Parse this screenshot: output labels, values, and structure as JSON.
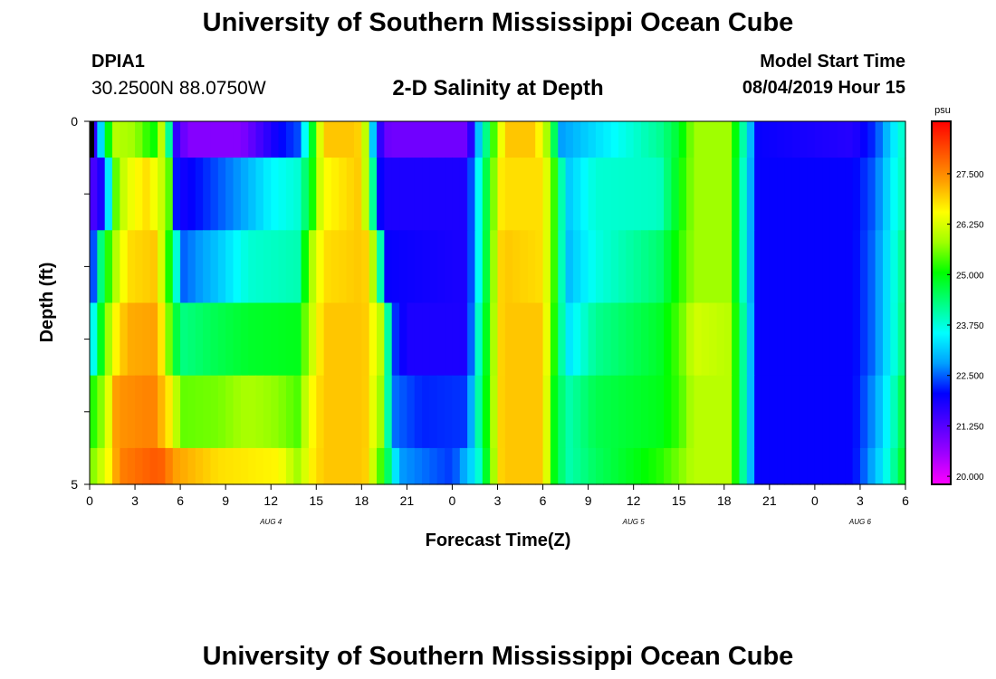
{
  "header": {
    "title": "University of Southern Mississippi Ocean Cube",
    "station_id": "DPIA1",
    "coords": "30.2500N 88.0750W",
    "model_label": "Model Start Time",
    "model_time": "08/04/2019 Hour 15"
  },
  "footer": {
    "title": "University of Southern Mississippi Ocean Cube"
  },
  "chart_data": {
    "type": "heatmap",
    "title": "2-D Salinity at Depth",
    "xlabel": "Forecast Time(Z)",
    "ylabel": "Depth (ft)",
    "x_range_hours": [
      0,
      54
    ],
    "y_range": [
      0,
      5
    ],
    "x_ticks": [
      {
        "h": 0,
        "label": "0"
      },
      {
        "h": 3,
        "label": "3"
      },
      {
        "h": 6,
        "label": "6"
      },
      {
        "h": 9,
        "label": "9"
      },
      {
        "h": 12,
        "label": "12"
      },
      {
        "h": 15,
        "label": "15"
      },
      {
        "h": 18,
        "label": "18"
      },
      {
        "h": 21,
        "label": "21"
      },
      {
        "h": 24,
        "label": "0"
      },
      {
        "h": 27,
        "label": "3"
      },
      {
        "h": 30,
        "label": "6"
      },
      {
        "h": 33,
        "label": "9"
      },
      {
        "h": 36,
        "label": "12"
      },
      {
        "h": 39,
        "label": "15"
      },
      {
        "h": 42,
        "label": "18"
      },
      {
        "h": 45,
        "label": "21"
      },
      {
        "h": 48,
        "label": "0"
      },
      {
        "h": 51,
        "label": "3"
      },
      {
        "h": 54,
        "label": "6"
      }
    ],
    "date_labels": [
      {
        "h": 12,
        "label": "AUG 4"
      },
      {
        "h": 36,
        "label": "AUG 5"
      },
      {
        "h": 51,
        "label": "AUG 6"
      }
    ],
    "y_ticks": [
      {
        "v": 0,
        "label": "0"
      },
      {
        "v": 5,
        "label": "5"
      }
    ],
    "colorbar": {
      "unit": "psu",
      "min": 19.8,
      "max": 28.8,
      "tick_values": [
        20.0,
        21.25,
        22.5,
        23.75,
        25.0,
        26.25,
        27.5
      ],
      "tick_labels": [
        "20.000",
        "21.250",
        "22.500",
        "23.750",
        "25.000",
        "26.250",
        "27.500"
      ],
      "colors": [
        "#ff00ff",
        "#a000ff",
        "#5000ff",
        "#0000ff",
        "#00a0ff",
        "#00ffff",
        "#00ff80",
        "#00ff00",
        "#a0ff00",
        "#ffff00",
        "#ffa000",
        "#ff5000",
        "#ff0000"
      ]
    },
    "layers": [
      {
        "depth": [
          0.0,
          0.5
        ],
        "keyframes": [
          [
            0,
            24.8
          ],
          [
            0.3,
            21.0
          ],
          [
            0.9,
            24.0
          ],
          [
            1.6,
            26.0
          ],
          [
            3.0,
            25.8
          ],
          [
            4.2,
            25.0
          ],
          [
            5.0,
            26.5
          ],
          [
            5.5,
            21.8
          ],
          [
            6.5,
            20.8
          ],
          [
            10,
            20.8
          ],
          [
            12.5,
            22.0
          ],
          [
            13.8,
            22.4
          ],
          [
            14.8,
            25.0
          ],
          [
            15.5,
            27.0
          ],
          [
            17.7,
            27.0
          ],
          [
            18.4,
            25.8
          ],
          [
            18.9,
            22.0
          ],
          [
            19.8,
            21.0
          ],
          [
            25,
            21.0
          ],
          [
            25.9,
            23.5
          ],
          [
            27.5,
            27.0
          ],
          [
            29.5,
            27.0
          ],
          [
            30.5,
            25.5
          ],
          [
            31.2,
            22.8
          ],
          [
            33.5,
            23.3
          ],
          [
            36,
            23.8
          ],
          [
            37.8,
            24.2
          ],
          [
            39,
            24.8
          ],
          [
            40,
            25.8
          ],
          [
            42.3,
            25.8
          ],
          [
            43.1,
            24.4
          ],
          [
            44.2,
            22.0
          ],
          [
            46,
            21.9
          ],
          [
            50.5,
            21.7
          ],
          [
            52,
            22.3
          ],
          [
            53.1,
            23.3
          ],
          [
            54,
            24.0
          ]
        ]
      },
      {
        "depth": [
          0.5,
          1.5
        ],
        "keyframes": [
          [
            0,
            21.2
          ],
          [
            1.0,
            22.0
          ],
          [
            1.6,
            25.3
          ],
          [
            2.4,
            26.3
          ],
          [
            3.8,
            26.8
          ],
          [
            5.2,
            25.8
          ],
          [
            5.8,
            21.8
          ],
          [
            7.5,
            22.2
          ],
          [
            10,
            22.8
          ],
          [
            12,
            23.5
          ],
          [
            13.8,
            23.8
          ],
          [
            14.6,
            24.8
          ],
          [
            15.4,
            26.5
          ],
          [
            18,
            27.0
          ],
          [
            18.6,
            24.8
          ],
          [
            19.3,
            21.8
          ],
          [
            25,
            21.8
          ],
          [
            25.7,
            23.5
          ],
          [
            27.3,
            26.8
          ],
          [
            30,
            26.8
          ],
          [
            30.8,
            25.2
          ],
          [
            31.6,
            23.1
          ],
          [
            33.5,
            23.8
          ],
          [
            37.7,
            23.9
          ],
          [
            39,
            25.0
          ],
          [
            40,
            25.8
          ],
          [
            42.3,
            25.8
          ],
          [
            43.1,
            24.2
          ],
          [
            44.2,
            22.0
          ],
          [
            50.5,
            22.0
          ],
          [
            52,
            22.5
          ],
          [
            53.1,
            23.5
          ],
          [
            54,
            24.0
          ]
        ]
      },
      {
        "depth": [
          1.5,
          2.5
        ],
        "keyframes": [
          [
            0,
            21.5
          ],
          [
            0.8,
            24.5
          ],
          [
            1.6,
            25.8
          ],
          [
            2.5,
            26.8
          ],
          [
            4.4,
            27.0
          ],
          [
            5.4,
            24.8
          ],
          [
            6.2,
            22.5
          ],
          [
            8.5,
            23.1
          ],
          [
            10.5,
            23.8
          ],
          [
            13.8,
            24.0
          ],
          [
            14.6,
            25.8
          ],
          [
            15.5,
            26.8
          ],
          [
            18.2,
            27.0
          ],
          [
            19.0,
            25.5
          ],
          [
            19.6,
            22.0
          ],
          [
            25,
            21.8
          ],
          [
            25.7,
            23.5
          ],
          [
            27.3,
            27.0
          ],
          [
            30,
            26.8
          ],
          [
            30.8,
            25.2
          ],
          [
            31.6,
            23.0
          ],
          [
            33.5,
            23.7
          ],
          [
            37.7,
            24.4
          ],
          [
            39,
            25.2
          ],
          [
            40,
            25.8
          ],
          [
            42.3,
            25.8
          ],
          [
            43.1,
            24.2
          ],
          [
            44.2,
            22.0
          ],
          [
            50.5,
            22.0
          ],
          [
            52,
            22.6
          ],
          [
            53.1,
            23.6
          ],
          [
            54,
            24.3
          ]
        ]
      },
      {
        "depth": [
          2.5,
          3.5
        ],
        "keyframes": [
          [
            0,
            23.0
          ],
          [
            0.7,
            24.8
          ],
          [
            1.6,
            26.5
          ],
          [
            2.5,
            27.2
          ],
          [
            4.5,
            27.3
          ],
          [
            5.6,
            24.8
          ],
          [
            6.2,
            24.3
          ],
          [
            8.5,
            24.6
          ],
          [
            10.5,
            24.8
          ],
          [
            13.8,
            24.9
          ],
          [
            14.6,
            26.0
          ],
          [
            15.5,
            27.0
          ],
          [
            18.2,
            27.0
          ],
          [
            19.5,
            25.8
          ],
          [
            20,
            22.4
          ],
          [
            21,
            21.8
          ],
          [
            25,
            21.8
          ],
          [
            25.7,
            23.8
          ],
          [
            27.3,
            27.0
          ],
          [
            30,
            27.0
          ],
          [
            30.7,
            25.3
          ],
          [
            31.6,
            23.3
          ],
          [
            33.5,
            24.2
          ],
          [
            37.7,
            24.8
          ],
          [
            39,
            25.4
          ],
          [
            40,
            26.2
          ],
          [
            42.3,
            26.0
          ],
          [
            43.1,
            24.5
          ],
          [
            44.2,
            22.0
          ],
          [
            50.5,
            22.0
          ],
          [
            52,
            22.6
          ],
          [
            53.1,
            23.6
          ],
          [
            54,
            24.4
          ]
        ]
      },
      {
        "depth": [
          3.5,
          4.5
        ],
        "keyframes": [
          [
            0,
            25.0
          ],
          [
            1.0,
            25.9
          ],
          [
            1.8,
            27.4
          ],
          [
            4.2,
            27.6
          ],
          [
            5.5,
            26.5
          ],
          [
            6.0,
            25.5
          ],
          [
            8.5,
            25.6
          ],
          [
            10.5,
            25.9
          ],
          [
            12.5,
            25.7
          ],
          [
            13.8,
            25.4
          ],
          [
            14.6,
            26.5
          ],
          [
            15.5,
            27.0
          ],
          [
            18.2,
            27.0
          ],
          [
            19.5,
            25.5
          ],
          [
            20,
            22.6
          ],
          [
            22,
            22.2
          ],
          [
            25,
            22.3
          ],
          [
            25.7,
            24.0
          ],
          [
            27.3,
            27.0
          ],
          [
            30,
            27.0
          ],
          [
            30.7,
            25.0
          ],
          [
            31.6,
            24.0
          ],
          [
            33.5,
            24.6
          ],
          [
            37.7,
            24.9
          ],
          [
            39,
            25.3
          ],
          [
            40,
            26.0
          ],
          [
            42.3,
            26.0
          ],
          [
            43.1,
            24.5
          ],
          [
            44.2,
            22.0
          ],
          [
            50.5,
            22.0
          ],
          [
            52,
            22.8
          ],
          [
            53.1,
            23.8
          ],
          [
            54,
            24.8
          ]
        ]
      },
      {
        "depth": [
          4.5,
          5.0
        ],
        "keyframes": [
          [
            0,
            25.5
          ],
          [
            1.2,
            26.5
          ],
          [
            2.0,
            27.6
          ],
          [
            4.6,
            28.0
          ],
          [
            5.7,
            27.3
          ],
          [
            8.5,
            26.8
          ],
          [
            12.5,
            26.6
          ],
          [
            13.8,
            25.8
          ],
          [
            14.6,
            26.6
          ],
          [
            15.5,
            27.0
          ],
          [
            18.2,
            27.0
          ],
          [
            19.5,
            25.0
          ],
          [
            20.5,
            22.8
          ],
          [
            24,
            22.3
          ],
          [
            25.6,
            23.5
          ],
          [
            27.3,
            27.0
          ],
          [
            30,
            27.0
          ],
          [
            30.7,
            25.0
          ],
          [
            31.6,
            24.0
          ],
          [
            33.5,
            24.5
          ],
          [
            37.7,
            25.2
          ],
          [
            39,
            25.6
          ],
          [
            40,
            26.0
          ],
          [
            42.3,
            26.0
          ],
          [
            43.1,
            24.5
          ],
          [
            44.2,
            22.0
          ],
          [
            50.5,
            22.0
          ],
          [
            52,
            23.0
          ],
          [
            53.1,
            24.0
          ],
          [
            54,
            25.0
          ]
        ]
      }
    ]
  }
}
